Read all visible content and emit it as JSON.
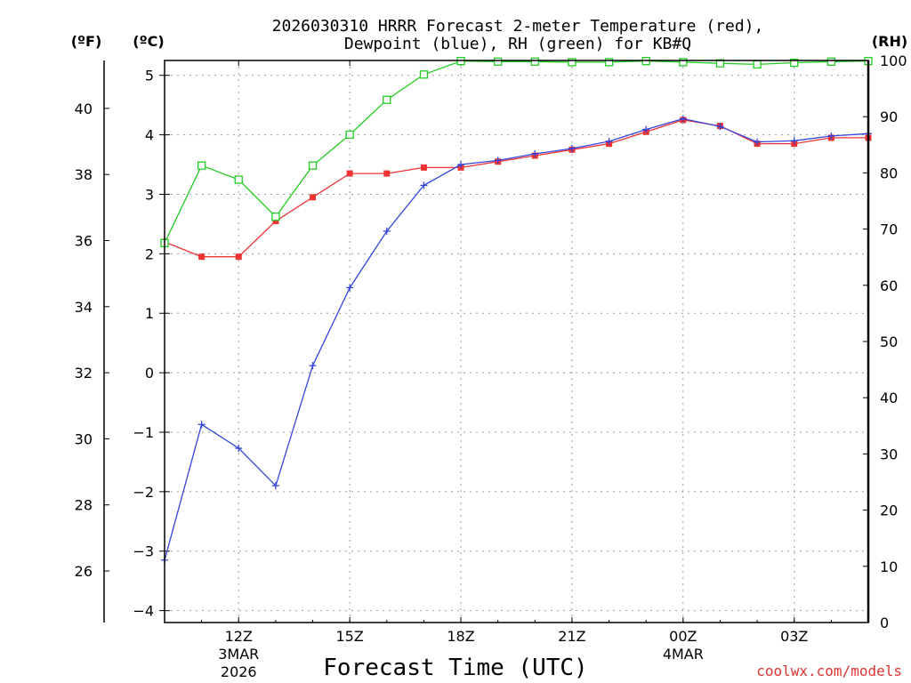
{
  "chart_data": {
    "type": "line",
    "title_line1": "2026030310 HRRR Forecast 2-meter Temperature (red),",
    "title_line2": "Dewpoint (blue), RH (green) for KB#Q",
    "xlabel": "Forecast Time (UTC)",
    "credit": "coolwx.com/models",
    "units": {
      "fahrenheit": "(ºF)",
      "celsius": "(ºC)",
      "rh": "(RH)"
    },
    "x_hours": [
      10,
      11,
      12,
      13,
      14,
      15,
      16,
      17,
      18,
      19,
      20,
      21,
      22,
      23,
      24,
      25,
      26,
      27,
      28,
      29
    ],
    "x_range": [
      10,
      29
    ],
    "x_ticks": [
      {
        "hour": 12,
        "label": "12Z",
        "sub1": "3MAR",
        "sub2": "2026"
      },
      {
        "hour": 15,
        "label": "15Z",
        "sub1": "",
        "sub2": ""
      },
      {
        "hour": 18,
        "label": "18Z",
        "sub1": "",
        "sub2": ""
      },
      {
        "hour": 21,
        "label": "21Z",
        "sub1": "",
        "sub2": ""
      },
      {
        "hour": 24,
        "label": "00Z",
        "sub1": "4MAR",
        "sub2": ""
      },
      {
        "hour": 27,
        "label": "03Z",
        "sub1": "",
        "sub2": ""
      }
    ],
    "celsius_range": [
      -4.2,
      5.25
    ],
    "celsius_ticks": [
      -4,
      -3,
      -2,
      -1,
      0,
      1,
      2,
      3,
      4,
      5
    ],
    "fahrenheit_ticks": [
      26,
      28,
      30,
      32,
      34,
      36,
      38,
      40
    ],
    "rh_range": [
      0,
      100
    ],
    "rh_ticks": [
      0,
      10,
      20,
      30,
      40,
      50,
      60,
      70,
      80,
      90,
      100
    ],
    "series": [
      {
        "name": "Temperature",
        "unit": "C",
        "color": "#ee3333",
        "marker": "filled-square",
        "values": [
          2.2,
          1.95,
          1.95,
          2.55,
          2.95,
          3.35,
          3.35,
          3.45,
          3.45,
          3.55,
          3.65,
          3.75,
          3.85,
          4.05,
          4.25,
          4.15,
          3.85,
          3.85,
          3.95,
          3.95
        ]
      },
      {
        "name": "Dewpoint",
        "unit": "C",
        "color": "#3344dd",
        "marker": "plus",
        "values": [
          -3.15,
          -0.87,
          -1.27,
          -1.9,
          0.12,
          1.43,
          2.38,
          3.15,
          3.5,
          3.57,
          3.68,
          3.77,
          3.89,
          4.09,
          4.27,
          4.14,
          3.88,
          3.9,
          3.98,
          4.02
        ]
      },
      {
        "name": "RH",
        "unit": "%",
        "color": "#22cc22",
        "marker": "open-square",
        "values": [
          67.5,
          81.3,
          78.8,
          72.2,
          81.3,
          86.8,
          93.0,
          97.5,
          99.9,
          99.8,
          99.8,
          99.7,
          99.7,
          99.9,
          99.7,
          99.5,
          99.3,
          99.6,
          99.8,
          99.9
        ]
      }
    ]
  }
}
